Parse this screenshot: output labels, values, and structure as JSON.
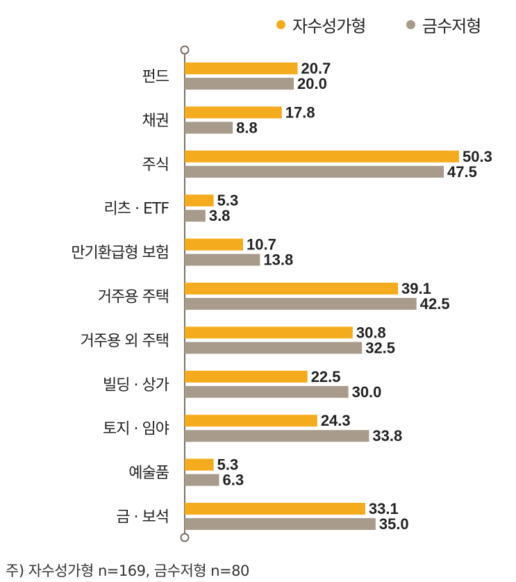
{
  "legend": [
    {
      "label": "자수성가형",
      "color": "#f5ab1e"
    },
    {
      "label": "금수저형",
      "color": "#a89b8c"
    }
  ],
  "footnote": "주) 자수성가형 n=169, 금수저형 n=80",
  "chart_data": {
    "type": "bar",
    "orientation": "horizontal",
    "categories": [
      "펀드",
      "채권",
      "주식",
      "리츠 · ETF",
      "만기환급형 보험",
      "거주용 주택",
      "거주용 외 주택",
      "빌딩 · 상가",
      "토지 · 임야",
      "예술품",
      "금 · 보석"
    ],
    "series": [
      {
        "name": "자수성가형",
        "color": "#f5ab1e",
        "values": [
          20.7,
          17.8,
          50.3,
          5.3,
          10.7,
          39.1,
          30.8,
          22.5,
          24.3,
          5.3,
          33.1
        ]
      },
      {
        "name": "금수저형",
        "color": "#a89b8c",
        "values": [
          20.0,
          8.8,
          47.5,
          3.8,
          13.8,
          42.5,
          32.5,
          30.0,
          33.8,
          6.3,
          35.0
        ]
      }
    ],
    "value_labels": [
      [
        "20.7",
        "17.8",
        "50.3",
        "5.3",
        "10.7",
        "39.1",
        "30.8",
        "22.5",
        "24.3",
        "5.3",
        "33.1"
      ],
      [
        "20.0",
        "8.8",
        "47.5",
        "3.8",
        "13.8",
        "42.5",
        "32.5",
        "30.0",
        "33.8",
        "6.3",
        "35.0"
      ]
    ],
    "xlim": [
      0,
      50.3
    ],
    "grid": false,
    "legend_position": "top-right"
  }
}
